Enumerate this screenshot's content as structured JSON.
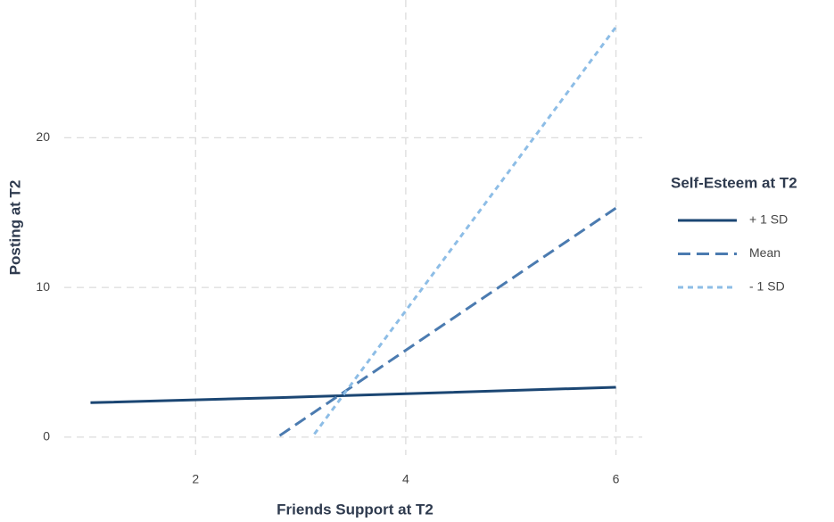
{
  "chart_data": {
    "type": "line",
    "xlabel": "Friends Support at T2",
    "ylabel": "Posting at T2",
    "legend_title": "Self-Esteem at T2",
    "legend": "right",
    "grid": true,
    "x": [
      1,
      2.8,
      3.13,
      6
    ],
    "series": [
      {
        "name": "+ 1 SD",
        "color": "#1b4673",
        "linestyle": "solid",
        "values": [
          2.3,
          2.64,
          2.71,
          3.33
        ]
      },
      {
        "name": "Mean",
        "color": "#4b7bb0",
        "linestyle": "dashed",
        "values": [
          null,
          0.1,
          1.67,
          15.3
        ]
      },
      {
        "name": "- 1 SD",
        "color": "#8dbde6",
        "linestyle": "dotted",
        "values": [
          null,
          null,
          0.2,
          27.4
        ]
      }
    ],
    "xlim": [
      0.75,
      6.25
    ],
    "xticks": [
      2,
      4,
      6
    ],
    "ylim": [
      -1.2,
      29.2
    ],
    "yticks": [
      0,
      10,
      20
    ]
  }
}
